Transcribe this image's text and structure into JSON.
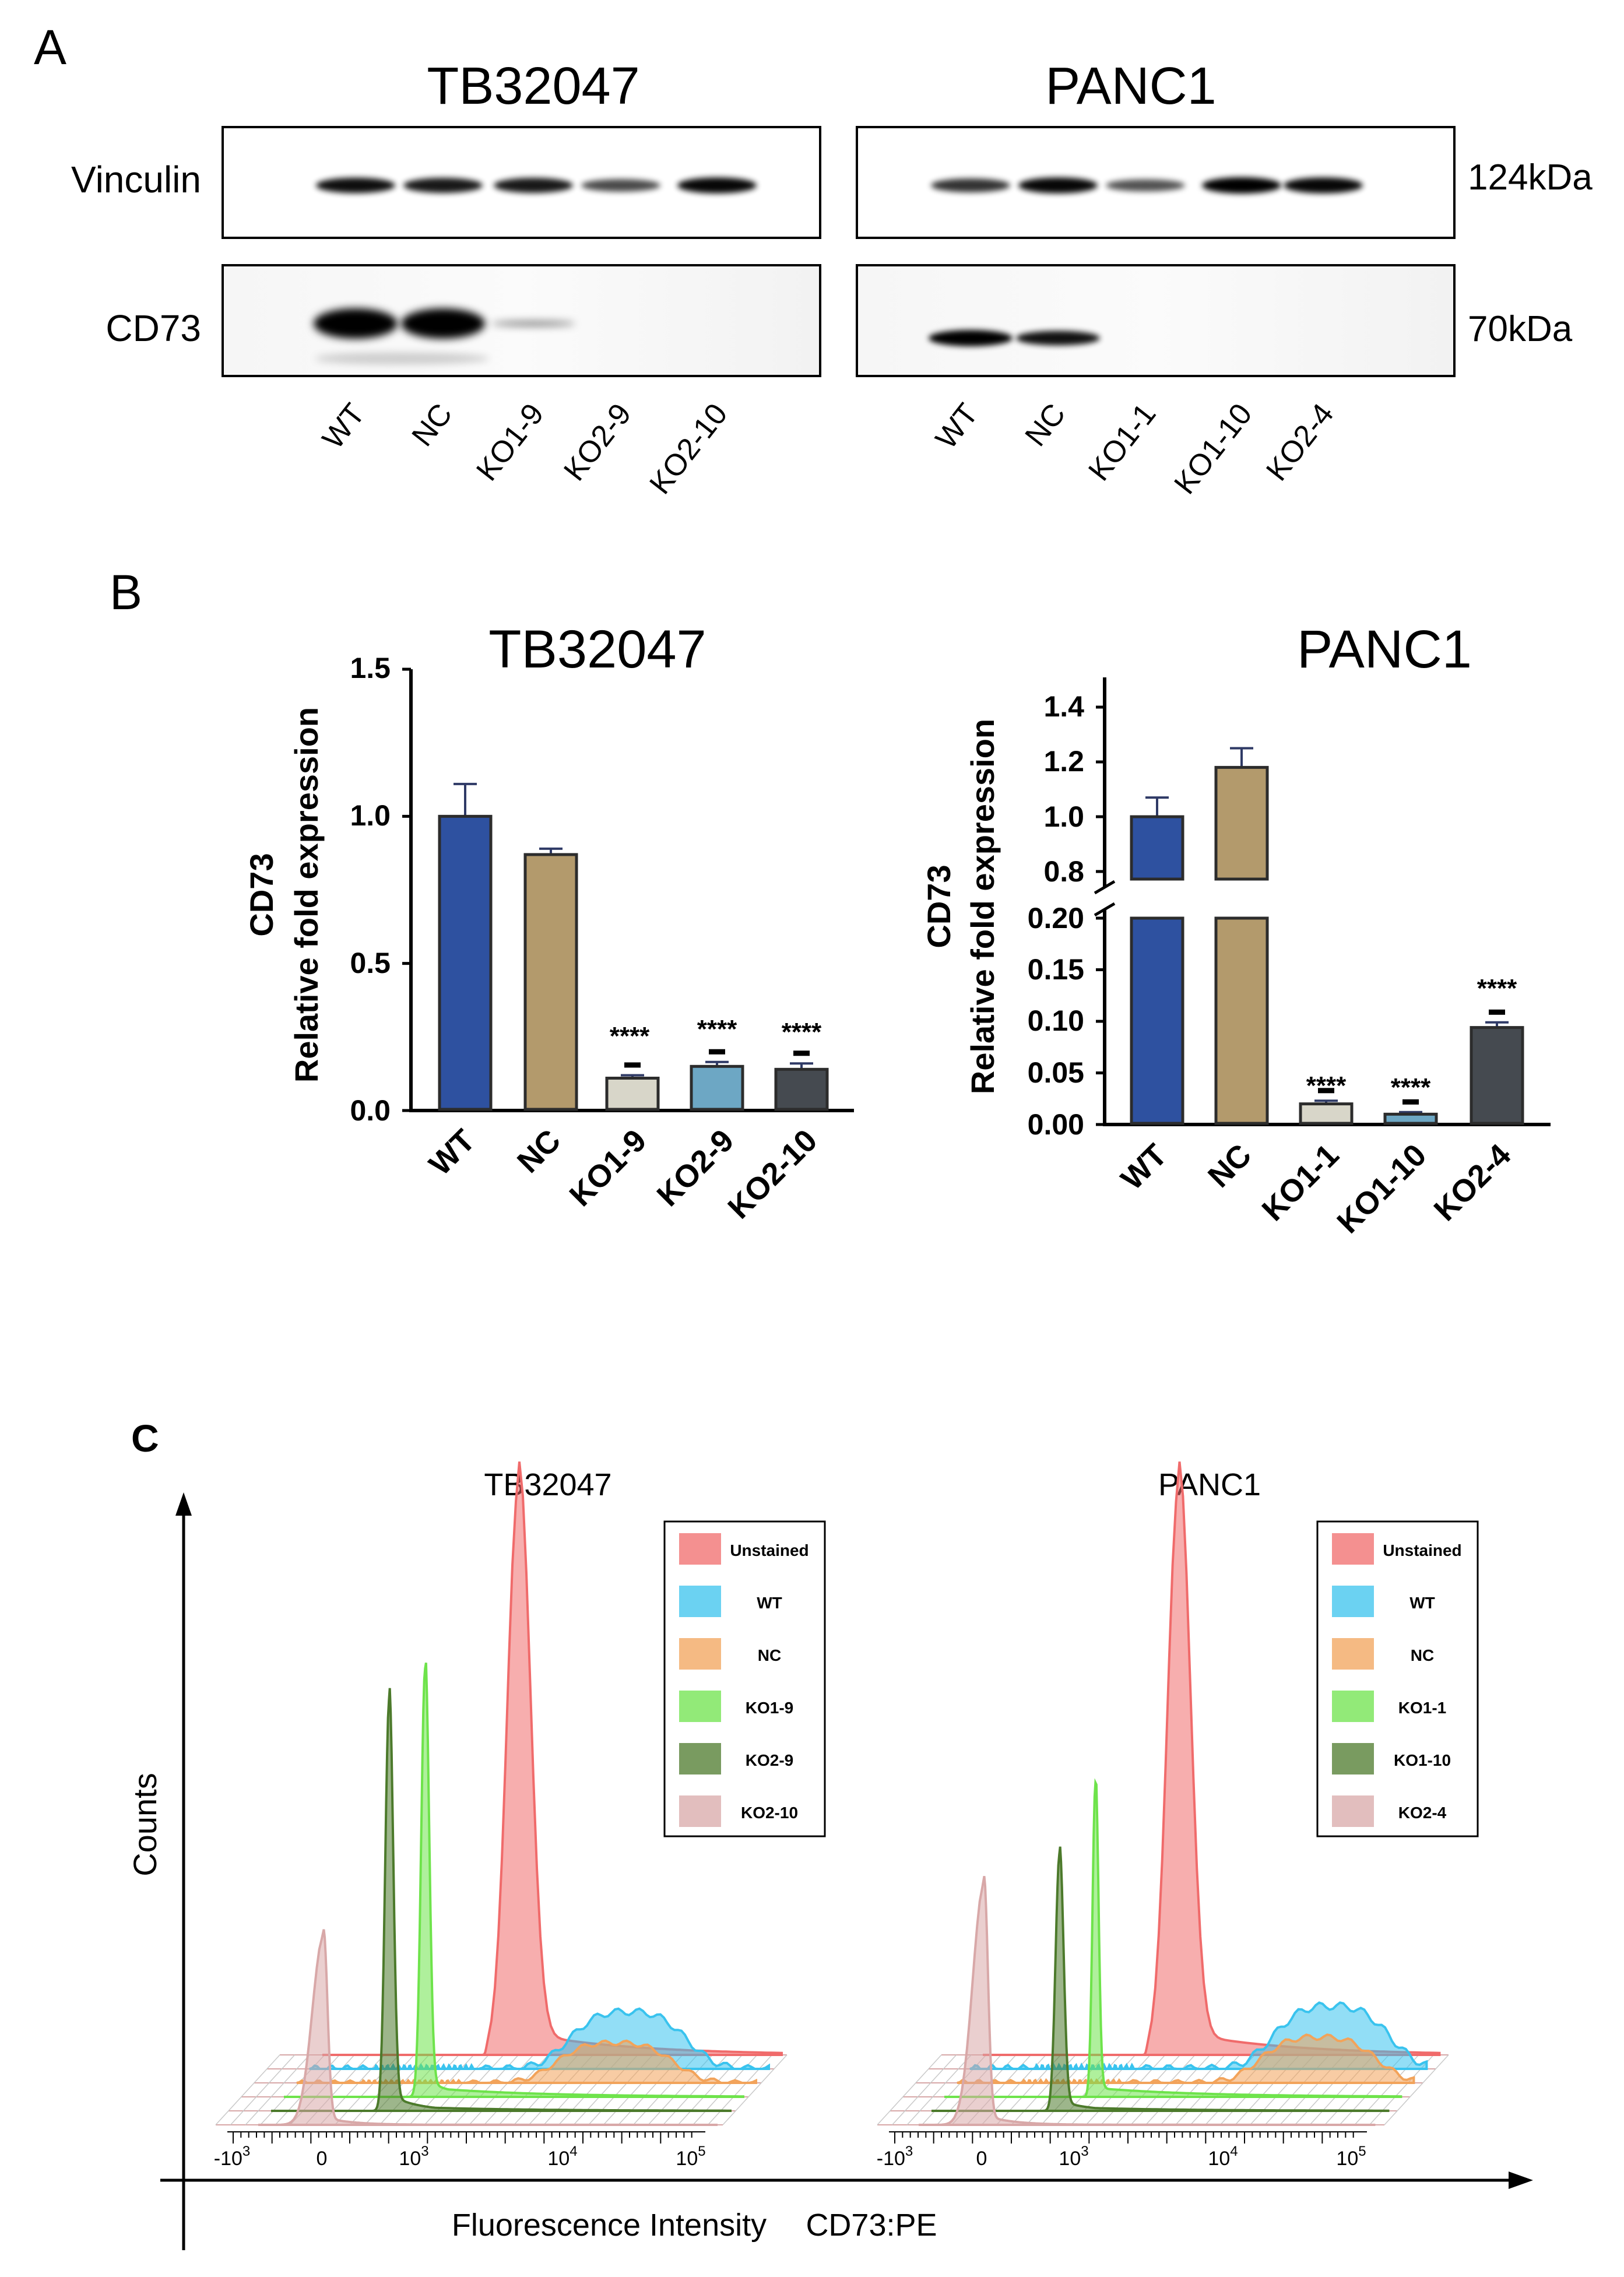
{
  "panel_a": {
    "label": "A",
    "gels": [
      {
        "title": "TB32047",
        "lanes": [
          "WT",
          "NC",
          "KO1-9",
          "KO2-9",
          "KO2-10"
        ],
        "vinculin_band_strength": [
          0.9,
          0.85,
          0.85,
          0.55,
          0.95
        ],
        "cd73_band_strength": [
          1.0,
          1.0,
          0.02,
          0.0,
          0.0
        ]
      },
      {
        "title": "PANC1",
        "lanes": [
          "WT",
          "NC",
          "KO1-1",
          "KO1-10",
          "KO2-4"
        ],
        "vinculin_band_strength": [
          0.7,
          0.95,
          0.5,
          1.0,
          0.95
        ],
        "cd73_band_strength": [
          1.0,
          0.85,
          0.0,
          0.0,
          0.0
        ]
      }
    ],
    "row_labels": [
      "Vinculin",
      "CD73"
    ],
    "mw_labels": [
      "124kDa",
      "70kDa"
    ]
  },
  "panel_b": {
    "label": "B"
  },
  "panel_c": {
    "label": "C",
    "y_label": "Counts",
    "x_label": "Fluorescence Intensity",
    "x_label2": "CD73:PE",
    "tick_labels": {
      "m": "-10",
      "z": "0",
      "t": "10",
      "e3": "3",
      "e4": "4",
      "e5": "5"
    }
  },
  "colors": {
    "wt": "#2e51a0",
    "nc": "#b39a6c",
    "ko1": "#d8d6c9",
    "ko2": "#6da7c4",
    "ko3": "#454a50",
    "error": "#2f3a66",
    "flow_unstained": "#f06b6b",
    "flow_wt": "#39c3ee",
    "flow_nc": "#f2a35a",
    "flow_ko_a": "#6ee34b",
    "flow_ko_b": "#4c7a2b",
    "flow_ko_c": "#d8a8a8"
  },
  "chart_data": [
    {
      "type": "bar",
      "title": "TB32047",
      "xlabel": "",
      "ylabel": "CD73",
      "ylabel2": "Relative fold expression",
      "categories": [
        "WT",
        "NC",
        "KO1-9",
        "KO2-9",
        "KO2-10"
      ],
      "values": [
        1.0,
        0.87,
        0.11,
        0.15,
        0.14
      ],
      "errors": [
        0.11,
        0.02,
        0.01,
        0.015,
        0.02
      ],
      "significance": [
        "",
        "",
        "****",
        "****",
        "****"
      ],
      "ylim": [
        0,
        1.5
      ],
      "yticks": [
        "0.0",
        "0.5",
        "1.0",
        "1.5"
      ]
    },
    {
      "type": "bar",
      "title": "PANC1",
      "xlabel": "",
      "ylabel": "CD73",
      "ylabel2": "Relative fold expression",
      "categories": [
        "WT",
        "NC",
        "KO1-1",
        "KO1-10",
        "KO2-4"
      ],
      "values": [
        1.0,
        1.18,
        0.02,
        0.01,
        0.094
      ],
      "errors": [
        0.07,
        0.07,
        0.003,
        0.002,
        0.005
      ],
      "significance": [
        "",
        "",
        "****",
        "****",
        "****"
      ],
      "axis_break": true,
      "ylim_lower": [
        0,
        0.2
      ],
      "ylim_upper": [
        0.8,
        1.45
      ],
      "yticks_lower": [
        "0.00",
        "0.05",
        "0.10",
        "0.15",
        "0.20"
      ],
      "yticks_upper": [
        "0.8",
        "1.0",
        "1.2",
        "1.4"
      ]
    },
    {
      "type": "area",
      "title": "TB32047",
      "x_scale": "biexponential log",
      "series": [
        {
          "name": "Unstained",
          "peak_log10": 3.25,
          "height": 1.0,
          "shape": "sharp"
        },
        {
          "name": "WT",
          "peak_log10": 4.2,
          "height": 0.1,
          "shape": "broad"
        },
        {
          "name": "NC",
          "peak_log10": 4.2,
          "height": 0.07,
          "shape": "broad"
        },
        {
          "name": "KO1-9",
          "peak_log10": 2.3,
          "height": 0.75,
          "shape": "sharp"
        },
        {
          "name": "KO2-9",
          "peak_log10": 1.6,
          "height": 0.72,
          "shape": "sharp"
        },
        {
          "name": "KO2-10",
          "peak_log10": 0.0,
          "height": 0.33,
          "shape": "sharp"
        }
      ]
    },
    {
      "type": "area",
      "title": "PANC1",
      "x_scale": "biexponential log",
      "series": [
        {
          "name": "Unstained",
          "peak_log10": 3.25,
          "height": 1.0,
          "shape": "sharp"
        },
        {
          "name": "WT",
          "peak_log10": 4.55,
          "height": 0.11,
          "shape": "broad"
        },
        {
          "name": "NC",
          "peak_log10": 4.55,
          "height": 0.08,
          "shape": "broad"
        },
        {
          "name": "KO1-1",
          "peak_log10": 2.6,
          "height": 0.55,
          "shape": "sharp"
        },
        {
          "name": "KO1-10",
          "peak_log10": 1.9,
          "height": 0.45,
          "shape": "sharp"
        },
        {
          "name": "KO2-4",
          "peak_log10": 0.0,
          "height": 0.42,
          "shape": "sharp"
        }
      ]
    }
  ]
}
